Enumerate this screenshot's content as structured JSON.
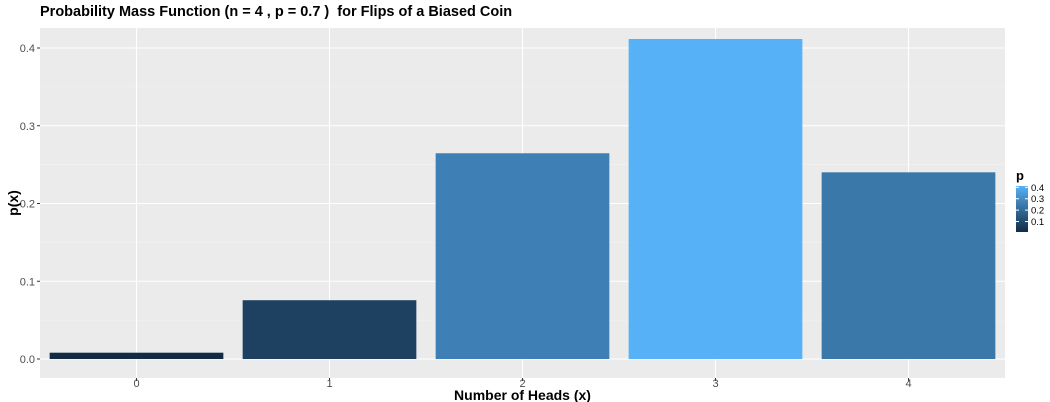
{
  "chart_data": {
    "type": "bar",
    "title": "Probability Mass Function (n = 4 , p = 0.7 )  for Flips of a Biased Coin",
    "xlabel": "Number of Heads (x)",
    "ylabel": "p(x)",
    "categories": [
      "0",
      "1",
      "2",
      "3",
      "4"
    ],
    "values": [
      0.0081,
      0.0756,
      0.2646,
      0.4116,
      0.2401
    ],
    "ylim": [
      0,
      0.42
    ],
    "yticks": [
      0.0,
      0.1,
      0.2,
      0.3,
      0.4
    ],
    "ytick_labels": [
      "0.0",
      "0.1",
      "0.2",
      "0.3",
      "0.4"
    ],
    "grid": true,
    "legend": {
      "title": "p",
      "placement": "right",
      "labels": [
        "0.4",
        "0.3",
        "0.2",
        "0.1"
      ],
      "values": [
        0.4,
        0.3,
        0.2,
        0.1
      ],
      "color_low": "#132B43",
      "color_high": "#56B1F7"
    },
    "colors": {
      "panel_background": "#EBEBEB",
      "grid_major": "#FFFFFF",
      "grid_minor": "#F5F5F5"
    }
  }
}
